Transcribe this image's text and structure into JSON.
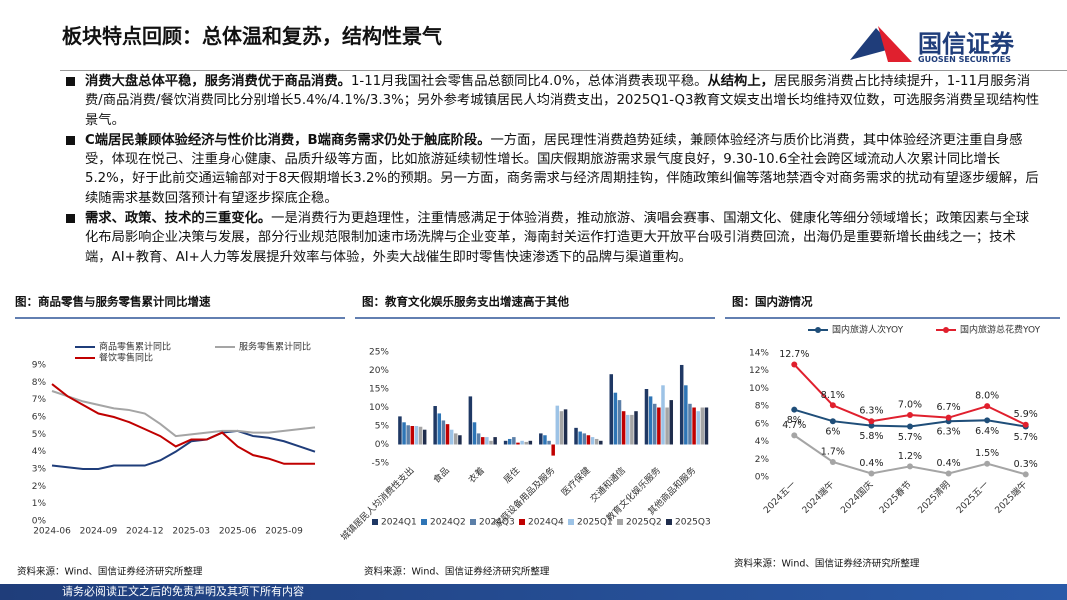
{
  "header": {
    "title": "板块特点回顾：总体温和复苏，结构性景气",
    "logo_cn": "国信证券",
    "logo_en": "GUOSEN SECURITIES"
  },
  "bullets": [
    {
      "runs": [
        {
          "text": "消费大盘总体平稳，服务消费优于商品消费。",
          "bold": true
        },
        {
          "text": "1-11月我国社会零售品总额同比4.0%，总体消费表现平稳。",
          "bold": false
        },
        {
          "text": "从结构上，",
          "bold": true
        },
        {
          "text": "居民服务消费占比持续提升，1-11月服务消费/商品消费/餐饮消费同比分别增长5.4%/4.1%/3.3%；另外参考城镇居民人均消费支出，2025Q1-Q3教育文娱支出增长均维持双位数，可选服务消费呈现结构性景气。",
          "bold": false
        }
      ]
    },
    {
      "runs": [
        {
          "text": "C端居民兼顾体验经济与性价比消费，B端商务需求仍处于触底阶段。",
          "bold": true
        },
        {
          "text": "一方面，居民理性消费趋势延续，兼顾体验经济与质价比消费，其中体验经济更注重自身感受，体现在悦己、注重身心健康、品质升级等方面，比如旅游延续韧性增长。国庆假期旅游需求景气度良好，9.30-10.6全社会跨区域流动人次累计同比增长5.2%，好于此前交通运输部对于8天假期增长3.2%的预期。另一方面，商务需求与经济周期挂钩，伴随政策纠偏等落地禁酒令对商务需求的扰动有望逐步缓解，后续随需求基数回落预计有望逐步探底企稳。",
          "bold": false
        }
      ]
    },
    {
      "runs": [
        {
          "text": "需求、政策、技术的三重变化。",
          "bold": true
        },
        {
          "text": "一是消费行为更趋理性，注重情感满足于体验消费，推动旅游、演唱会赛事、国潮文化、健康化等细分领域增长；政策因素与全球化布局影响企业决策与发展，部分行业规范限制加速市场洗牌与企业变革，海南封关运作打造更大开放平台吸引消费回流，出海仍是重要新增长曲线之一；技术端，AI+教育、AI+人力等发展提升效率与体验，外卖大战催生即时零售快速渗透下的品牌与渠道重构。",
          "bold": false
        }
      ]
    }
  ],
  "chart_data": [
    {
      "type": "line",
      "title": "图：商品零售与服务零售累计同比增速",
      "source": "资料来源：Wind、国信证券经济研究所整理",
      "legend": "top",
      "markers": false,
      "categories": [
        "2024-06",
        null,
        null,
        "2024-09",
        null,
        null,
        "2024-12",
        null,
        null,
        "2025-03",
        null,
        null,
        "2025-06",
        null,
        null,
        "2025-09",
        null,
        null
      ],
      "ylim": [
        0,
        9
      ],
      "yticks": [
        {
          "value": 0,
          "label": "0%"
        },
        {
          "value": 1,
          "label": "1%"
        },
        {
          "value": 2,
          "label": "2%"
        },
        {
          "value": 3,
          "label": "3%"
        },
        {
          "value": 4,
          "label": "4%"
        },
        {
          "value": 5,
          "label": "5%"
        },
        {
          "value": 6,
          "label": "6%"
        },
        {
          "value": 7,
          "label": "7%"
        },
        {
          "value": 8,
          "label": "8%"
        },
        {
          "value": 9,
          "label": "9%"
        }
      ],
      "series": [
        {
          "name": "商品零售累计同比",
          "color": "#1f3d7a",
          "values": [
            3.2,
            3.1,
            3.0,
            3.0,
            3.2,
            3.2,
            3.2,
            3.5,
            4.0,
            4.6,
            4.7,
            5.1,
            5.2,
            4.9,
            4.8,
            4.6,
            4.3,
            4.0
          ]
        },
        {
          "name": "服务零售累计同比",
          "color": "#a5a5a5",
          "values": [
            7.5,
            7.2,
            6.9,
            6.7,
            6.5,
            6.4,
            6.2,
            5.6,
            4.9,
            5.0,
            5.1,
            5.2,
            5.2,
            5.1,
            5.1,
            5.2,
            5.3,
            5.4
          ]
        },
        {
          "name": "餐饮零售同比",
          "color": "#c00000",
          "values": [
            7.9,
            7.2,
            6.7,
            6.2,
            6.0,
            5.7,
            5.3,
            4.9,
            4.3,
            4.7,
            4.7,
            5.1,
            4.3,
            3.8,
            3.6,
            3.3,
            3.3,
            3.3
          ]
        }
      ]
    },
    {
      "type": "bar",
      "title": "图：教育文化娱乐服务支出增速高于其他",
      "source": "资料来源：Wind、国信证券经济研究所整理",
      "legend": "bottom",
      "categories": [
        "城镇居民人均消费性支出",
        "食品",
        "衣着",
        "居住",
        "家庭设备用品及服务",
        "医疗保健",
        "交通和通信",
        "教育文化娱乐服务",
        "其他商品和服务"
      ],
      "ylim": [
        -5,
        25
      ],
      "yticks": [
        {
          "value": -5,
          "label": "-5%"
        },
        {
          "value": 0,
          "label": "0%"
        },
        {
          "value": 5,
          "label": "5%"
        },
        {
          "value": 10,
          "label": "10%"
        },
        {
          "value": 15,
          "label": "15%"
        },
        {
          "value": 20,
          "label": "20%"
        },
        {
          "value": 25,
          "label": "25%"
        }
      ],
      "series": [
        {
          "name": "2024Q1",
          "color": "#1f3864",
          "values": [
            7.6,
            10.4,
            13.0,
            1.0,
            3.0,
            4.5,
            19.0,
            15.0,
            21.5
          ]
        },
        {
          "name": "2024Q2",
          "color": "#2e75b6",
          "values": [
            6.0,
            8.4,
            6.0,
            1.5,
            2.5,
            3.5,
            14.0,
            13.0,
            16.0
          ]
        },
        {
          "name": "2024Q3",
          "color": "#5b7fa8",
          "values": [
            5.2,
            6.5,
            3.0,
            2.0,
            1.0,
            3.0,
            12.0,
            11.0,
            11.0
          ]
        },
        {
          "name": "2024Q4",
          "color": "#c00000",
          "values": [
            5.0,
            5.5,
            2.0,
            0.5,
            -3.0,
            2.5,
            9.0,
            10.0,
            10.0
          ]
        },
        {
          "name": "2025Q1",
          "color": "#9dc3e6",
          "values": [
            5.0,
            4.0,
            2.0,
            1.0,
            10.5,
            2.0,
            8.0,
            16.0,
            9.0
          ]
        },
        {
          "name": "2025Q2",
          "color": "#a5a5a5",
          "values": [
            4.8,
            3.0,
            1.0,
            0.7,
            9.0,
            1.5,
            8.0,
            10.0,
            10.0
          ]
        },
        {
          "name": "2025Q3",
          "color": "#1f2d4d",
          "values": [
            4.0,
            2.5,
            2.0,
            1.0,
            9.5,
            1.0,
            9.0,
            12.0,
            10.0
          ]
        }
      ]
    },
    {
      "type": "line",
      "title": "图：国内游情况",
      "source": "资料来源：Wind、国信证券经济研究所整理",
      "legend": "top",
      "markers": true,
      "categories": [
        "2024五一",
        "2024端午",
        "2024国庆",
        "2025春节",
        "2025清明",
        "2025五一",
        "2025端午"
      ],
      "ylim": [
        0,
        14
      ],
      "yticks": [
        {
          "value": 0,
          "label": "0%"
        },
        {
          "value": 2,
          "label": "2%"
        },
        {
          "value": 4,
          "label": "4%"
        },
        {
          "value": 6,
          "label": "6%"
        },
        {
          "value": 8,
          "label": "8%"
        },
        {
          "value": 10,
          "label": "10%"
        },
        {
          "value": 12,
          "label": "12%"
        },
        {
          "value": 14,
          "label": "14%"
        }
      ],
      "series": [
        {
          "name": "国内旅游人次YOY",
          "color": "#1f4e79",
          "values": [
            7.6,
            6.3,
            5.8,
            5.7,
            6.3,
            6.4,
            5.7
          ],
          "value_labels": [
            "8%",
            "6%",
            "5.8%",
            "5.7%",
            "6.3%",
            "6.4%",
            "5.7%"
          ]
        },
        {
          "name": "国内旅游总花费YOY",
          "color": "#e0202e",
          "values": [
            12.7,
            8.1,
            6.3,
            7.0,
            6.7,
            8.0,
            5.9
          ],
          "value_labels": [
            "12.7%",
            "8.1%",
            "6.3%",
            "7.0%",
            "6.7%",
            "8.0%",
            "5.9%"
          ]
        },
        {
          "color": "#a5a5a5",
          "values": [
            4.7,
            1.7,
            0.4,
            1.2,
            0.4,
            1.5,
            0.3
          ],
          "value_labels": [
            "4.7%",
            "1.7%",
            "0.4%",
            "1.2%",
            "0.4%",
            "1.5%",
            "0.3%"
          ]
        }
      ]
    }
  ],
  "footer": "请务必阅读正文之后的免责声明及其项下所有内容"
}
